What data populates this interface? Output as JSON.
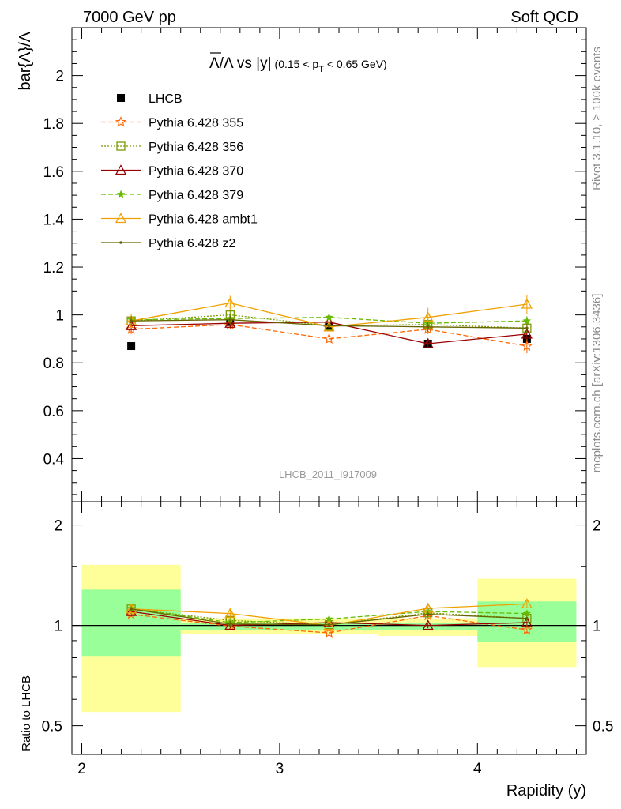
{
  "header": {
    "left": "7000 GeV pp",
    "right": "Soft QCD"
  },
  "side_text": {
    "rivet": "Rivet 3.1.10, ≥ 100k events",
    "mcplots": "mcplots.cern.ch [arXiv:1306.3436]"
  },
  "analysis_id": "LHCB_2011_I917009",
  "chart_data": [
    {
      "type": "line",
      "title": "Λ̄/Λ vs |y| (0.15 < p_T < 0.65 GeV)",
      "title_parts": {
        "main": "Λ/Λ vs |y|",
        "cut": "(0.15 < p",
        "cut_sub": "T",
        "cut_tail": " < 0.65 GeV)"
      },
      "ylabel": "bar{Λ}/Λ",
      "xlabel": "",
      "xlim": [
        1.95,
        4.55
      ],
      "ylim": [
        0.22,
        2.2
      ],
      "yticks": [
        0.4,
        0.6,
        0.8,
        1,
        1.2,
        1.4,
        1.6,
        1.8,
        2
      ],
      "ytick_labels": [
        "0.4",
        "0.6",
        "0.8",
        "1",
        "1.2",
        "1.4",
        "1.6",
        "1.8",
        "2"
      ],
      "x": [
        2.25,
        2.75,
        3.25,
        3.75,
        4.25
      ],
      "series": [
        {
          "name": "LHCB",
          "color": "#000000",
          "marker": "filled-square",
          "dash": "none",
          "y": [
            0.87,
            0.97,
            0.95,
            0.88,
            0.9
          ],
          "err": [
            0.01,
            0.01,
            0.01,
            0.01,
            0.01
          ]
        },
        {
          "name": "Pythia 6.428 355",
          "color": "#ff6600",
          "marker": "open-star",
          "dash": "6,3",
          "y": [
            0.94,
            0.96,
            0.9,
            0.94,
            0.87
          ],
          "err": [
            0.02,
            0.02,
            0.02,
            0.02,
            0.03
          ]
        },
        {
          "name": "Pythia 6.428 356",
          "color": "#7a9a00",
          "marker": "open-square",
          "dash": "2,2",
          "y": [
            0.975,
            1.0,
            0.955,
            0.96,
            0.945
          ],
          "err": [
            0.02,
            0.02,
            0.02,
            0.02,
            0.02
          ]
        },
        {
          "name": "Pythia 6.428 370",
          "color": "#990000",
          "marker": "open-triangle",
          "dash": "none",
          "y": [
            0.955,
            0.965,
            0.97,
            0.88,
            0.92
          ],
          "err": [
            0.02,
            0.02,
            0.02,
            0.02,
            0.02
          ]
        },
        {
          "name": "Pythia 6.428 379",
          "color": "#66bb00",
          "marker": "small-star",
          "dash": "6,3",
          "y": [
            0.98,
            0.985,
            0.99,
            0.965,
            0.975
          ],
          "err": [
            0.02,
            0.02,
            0.02,
            0.02,
            0.02
          ]
        },
        {
          "name": "Pythia 6.428 ambt1",
          "color": "#f0a000",
          "marker": "open-triangle",
          "dash": "none",
          "y": [
            0.975,
            1.05,
            0.95,
            0.99,
            1.045
          ],
          "err": [
            0.03,
            0.03,
            0.03,
            0.04,
            0.04
          ]
        },
        {
          "name": "Pythia 6.428 z2",
          "color": "#666600",
          "marker": "dot",
          "dash": "none",
          "y": [
            0.975,
            0.98,
            0.955,
            0.95,
            0.945
          ],
          "err": [
            0.02,
            0.02,
            0.02,
            0.02,
            0.02
          ]
        }
      ]
    },
    {
      "type": "line",
      "title": "",
      "ylabel": "Ratio to LHCB",
      "xlabel": "Rapidity (y)",
      "log_y": true,
      "xlim": [
        1.95,
        4.55
      ],
      "ylim": [
        0.41,
        2.35
      ],
      "yticks": [
        0.5,
        1,
        2
      ],
      "ytick_labels": [
        "0.5",
        "1",
        "2"
      ],
      "xticks": [
        2,
        3,
        4
      ],
      "xtick_labels": [
        "2",
        "3",
        "4"
      ],
      "x": [
        2.25,
        2.75,
        3.25,
        3.75,
        4.25
      ],
      "reference_line": 1,
      "uncertainty_bands": {
        "bins": [
          [
            2.0,
            2.5
          ],
          [
            2.5,
            3.0
          ],
          [
            3.0,
            3.5
          ],
          [
            3.5,
            4.0
          ],
          [
            4.0,
            4.5
          ]
        ],
        "inner_color": "#99ff99",
        "outer_color": "#ffff99",
        "inner_low": [
          0.81,
          0.97,
          0.97,
          0.97,
          0.89
        ],
        "inner_high": [
          1.28,
          1.02,
          1.02,
          1.02,
          1.18
        ],
        "outer_low": [
          0.55,
          0.94,
          0.94,
          0.93,
          0.75
        ],
        "outer_high": [
          1.52,
          1.05,
          1.05,
          1.05,
          1.38
        ]
      },
      "series": [
        {
          "name": "Pythia 6.428 355",
          "color": "#ff6600",
          "marker": "open-star",
          "dash": "6,3",
          "y": [
            1.08,
            0.995,
            0.95,
            1.07,
            0.97
          ],
          "err": [
            0.02,
            0.02,
            0.02,
            0.02,
            0.03
          ]
        },
        {
          "name": "Pythia 6.428 356",
          "color": "#7a9a00",
          "marker": "open-square",
          "dash": "2,2",
          "y": [
            1.12,
            1.035,
            1.005,
            1.09,
            1.05
          ],
          "err": [
            0.02,
            0.02,
            0.02,
            0.02,
            0.02
          ]
        },
        {
          "name": "Pythia 6.428 370",
          "color": "#990000",
          "marker": "open-triangle",
          "dash": "none",
          "y": [
            1.1,
            1.0,
            1.02,
            1.0,
            1.02
          ],
          "err": [
            0.02,
            0.02,
            0.02,
            0.02,
            0.02
          ]
        },
        {
          "name": "Pythia 6.428 379",
          "color": "#66bb00",
          "marker": "small-star",
          "dash": "6,3",
          "y": [
            1.125,
            1.02,
            1.045,
            1.1,
            1.085
          ],
          "err": [
            0.02,
            0.02,
            0.02,
            0.02,
            0.02
          ]
        },
        {
          "name": "Pythia 6.428 ambt1",
          "color": "#f0a000",
          "marker": "open-triangle",
          "dash": "none",
          "y": [
            1.12,
            1.085,
            1.0,
            1.125,
            1.16
          ],
          "err": [
            0.03,
            0.03,
            0.03,
            0.03,
            0.03
          ]
        },
        {
          "name": "Pythia 6.428 z2",
          "color": "#666600",
          "marker": "dot",
          "dash": "none",
          "y": [
            1.12,
            1.01,
            1.005,
            1.08,
            1.05
          ],
          "err": [
            0.02,
            0.02,
            0.02,
            0.02,
            0.02
          ]
        }
      ]
    }
  ]
}
